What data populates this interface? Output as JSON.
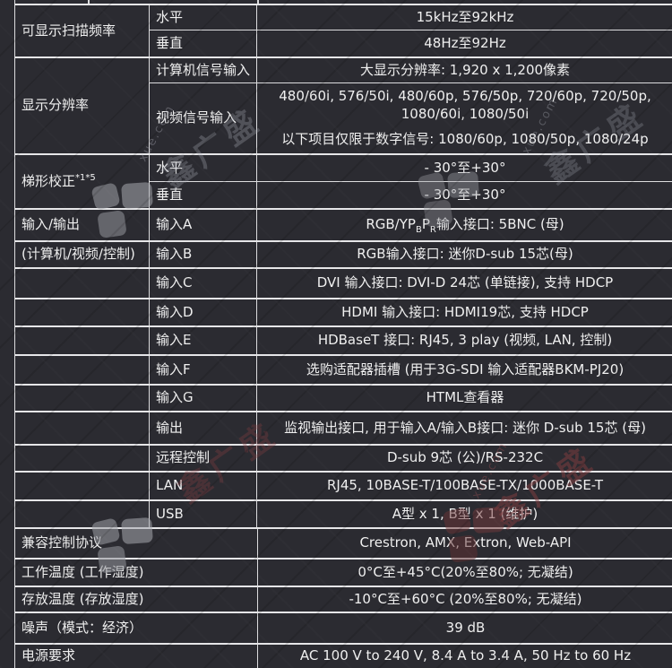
{
  "page": {
    "background_color": "#2b2b31",
    "border_color": "#e6e6e8",
    "text_color": "#f0f0f0"
  },
  "watermark": {
    "brand_text": "鑫广盛",
    "small_text": "xue.com",
    "gray_color": "#a2a2aa",
    "red_color": "#7a3a3a"
  },
  "spec_table": {
    "groups": [
      {
        "label_parts": [
          {
            "t": "可显示扫描频率"
          }
        ],
        "rows": [
          {
            "param": "水平",
            "value": "15kHz至92kHz"
          },
          {
            "param": "垂直",
            "value": "48Hz至92Hz"
          }
        ]
      },
      {
        "label_parts": [
          {
            "t": "显示分辨率"
          }
        ],
        "rows": [
          {
            "param": "计算机信号输入",
            "value": "大显示分辨率: 1,920 x 1,200像素"
          },
          {
            "param": "视频信号输入",
            "value": "480/60i, 576/50i, 480/60p, 576/50p, 720/60p, 720/50p, 1080/60i, 1080/50i",
            "value2": "以下项目仅限于数字信号: 1080/60p, 1080/50p, 1080/24p"
          }
        ]
      },
      {
        "label_parts": [
          {
            "t": "梯形校正"
          },
          {
            "t": "*1*5",
            "sup": true
          }
        ],
        "rows": [
          {
            "param": "水平",
            "value": "- 30°至+30°"
          },
          {
            "param": "垂直",
            "value": "- 30°至+30°"
          }
        ]
      }
    ],
    "io_rows": [
      {
        "label": "输入/输出",
        "param": "输入A",
        "value_parts": [
          {
            "t": "RGB/YP"
          },
          {
            "t": "B",
            "sub": true
          },
          {
            "t": "P"
          },
          {
            "t": "R",
            "sub": true
          },
          {
            "t": "输入接口: 5BNC (母)"
          }
        ]
      },
      {
        "label": "(计算机/视频/控制)",
        "param": "输入B",
        "value": "RGB输入接口: 迷你D-sub 15芯(母)"
      },
      {
        "label": "",
        "param": "输入C",
        "value": "DVI 输入接口: DVI-D 24芯 (单链接), 支持 HDCP"
      },
      {
        "label": "",
        "param": "输入D",
        "value": "HDMI 输入接口: HDMI19芯, 支持 HDCP"
      },
      {
        "label": "",
        "param": "输入E",
        "value": "HDBaseT 接口: RJ45, 3 play (视频, LAN, 控制)"
      },
      {
        "label": "",
        "param": "输入F",
        "value": "选购适配器插槽 (用于3G-SDI 输入适配器BKM-PJ20)"
      },
      {
        "label": "",
        "param": "输入G",
        "value": "HTML查看器"
      },
      {
        "label": "",
        "param": "输出",
        "value": "监视输出接口, 用于输入A/输入B接口: 迷你 D-sub 15芯 (母)"
      },
      {
        "label": "",
        "param": "远程控制",
        "value": "D-sub 9芯 (公)/RS-232C"
      },
      {
        "label": "",
        "param": "LAN",
        "value": "RJ45, 10BASE-T/100BASE-TX/1000BASE-T"
      },
      {
        "label": "",
        "param": "USB",
        "value": "A型 x 1, B型 x 1 (维护)"
      }
    ],
    "bottom_rows": [
      {
        "label": "兼容控制协议",
        "value": "Crestron, AMX, Extron, Web-API"
      },
      {
        "label": "工作温度 (工作湿度)",
        "value": "0°C至+45°C(20%至80%; 无凝结)"
      },
      {
        "label": "存放温度 (存放湿度)",
        "value": "-10°C至+60°C (20%至80%; 无凝结)"
      },
      {
        "label": "噪声（模式：经济）",
        "value": "39 dB"
      },
      {
        "label": "电源要求",
        "value": "AC 100 V to 240 V, 8.4 A to 3.4 A, 50 Hz to 60 Hz"
      }
    ]
  }
}
